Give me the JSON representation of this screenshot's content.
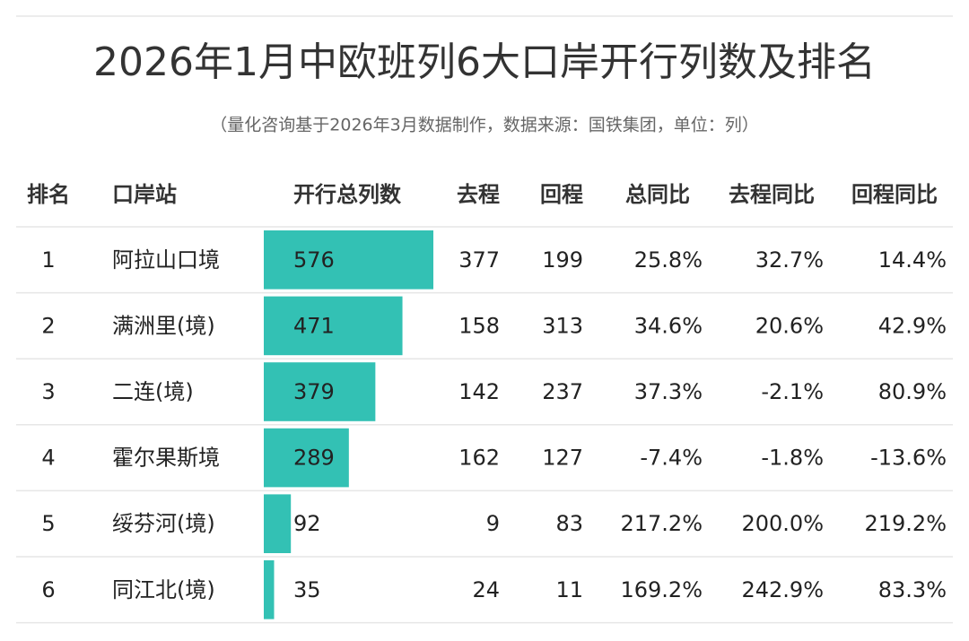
{
  "header": {
    "title": "2026年1月中欧班列6大口岸开行列数及排名",
    "subtitle": "（量化咨询基于2026年3月数据制作，数据来源：国铁集团，单位：列）"
  },
  "table": {
    "columns": [
      "排名",
      "口岸站",
      "开行总列数",
      "去程",
      "回程",
      "总同比",
      "去程同比",
      "回程同比"
    ],
    "rows": [
      [
        1,
        "阿拉山口境",
        576,
        377,
        199,
        "25.8%",
        "32.7%",
        "14.4%"
      ],
      [
        2,
        "满洲里(境)",
        471,
        158,
        313,
        "34.6%",
        "20.6%",
        "42.9%"
      ],
      [
        3,
        "二连(境)",
        379,
        142,
        237,
        "37.3%",
        "-2.1%",
        "80.9%"
      ],
      [
        4,
        "霍尔果斯境",
        289,
        162,
        127,
        "-7.4%",
        "-1.8%",
        "-13.6%"
      ],
      [
        5,
        "绥芬河(境)",
        92,
        9,
        83,
        "217.2%",
        "200.0%",
        "219.2%"
      ],
      [
        6,
        "同江北(境)",
        35,
        24,
        11,
        "169.2%",
        "242.9%",
        "83.3%"
      ]
    ]
  }
}
